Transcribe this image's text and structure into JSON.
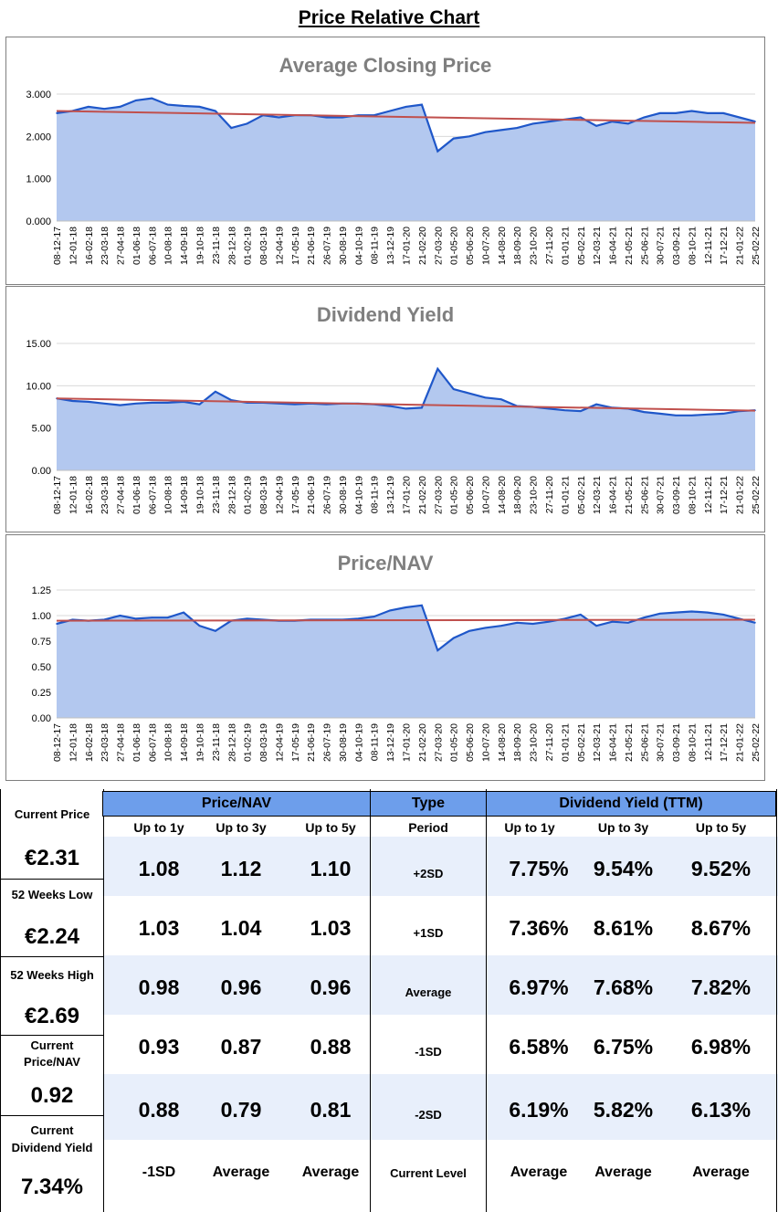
{
  "title": "Price Relative Chart",
  "colors": {
    "area": "#b3c8ef",
    "line": "#1f57c9",
    "trend": "#c0504d",
    "header_blue": "#6d9eeb",
    "band": "#e8effb"
  },
  "chart_data": [
    {
      "type": "area",
      "title": "Average Closing Price",
      "ylim": [
        0,
        3.0
      ],
      "yticks": [
        "0.000",
        "1.000",
        "2.000",
        "3.000"
      ],
      "ytick_values": [
        0,
        1,
        2,
        3
      ],
      "xticks": [
        "08-12-17",
        "12-01-18",
        "16-02-18",
        "23-03-18",
        "27-04-18",
        "01-06-18",
        "06-07-18",
        "10-08-18",
        "14-09-18",
        "19-10-18",
        "23-11-18",
        "28-12-18",
        "01-02-19",
        "08-03-19",
        "12-04-19",
        "17-05-19",
        "21-06-19",
        "26-07-19",
        "30-08-19",
        "04-10-19",
        "08-11-19",
        "13-12-19",
        "17-01-20",
        "21-02-20",
        "27-03-20",
        "01-05-20",
        "05-06-20",
        "10-07-20",
        "14-08-20",
        "18-09-20",
        "23-10-20",
        "27-11-20",
        "01-01-21",
        "05-02-21",
        "12-03-21",
        "16-04-21",
        "21-05-21",
        "25-06-21",
        "30-07-21",
        "03-09-21",
        "08-10-21",
        "12-11-21",
        "17-12-21",
        "21-01-22",
        "25-02-22"
      ],
      "values": [
        2.55,
        2.6,
        2.7,
        2.65,
        2.7,
        2.85,
        2.9,
        2.75,
        2.72,
        2.7,
        2.6,
        2.2,
        2.3,
        2.5,
        2.45,
        2.5,
        2.5,
        2.45,
        2.45,
        2.5,
        2.5,
        2.6,
        2.7,
        2.75,
        1.65,
        1.95,
        2.0,
        2.1,
        2.15,
        2.2,
        2.3,
        2.35,
        2.4,
        2.45,
        2.25,
        2.35,
        2.3,
        2.45,
        2.55,
        2.55,
        2.6,
        2.55,
        2.55,
        2.45,
        2.35
      ],
      "trend": [
        2.6,
        2.32
      ]
    },
    {
      "type": "area",
      "title": "Dividend Yield",
      "ylim": [
        0,
        15
      ],
      "yticks": [
        "0.00",
        "5.00",
        "10.00",
        "15.00"
      ],
      "ytick_values": [
        0,
        5,
        10,
        15
      ],
      "xticks": [
        "08-12-17",
        "12-01-18",
        "16-02-18",
        "23-03-18",
        "27-04-18",
        "01-06-18",
        "06-07-18",
        "10-08-18",
        "14-09-18",
        "19-10-18",
        "23-11-18",
        "28-12-18",
        "01-02-19",
        "08-03-19",
        "12-04-19",
        "17-05-19",
        "21-06-19",
        "26-07-19",
        "30-08-19",
        "04-10-19",
        "08-11-19",
        "13-12-19",
        "17-01-20",
        "21-02-20",
        "27-03-20",
        "01-05-20",
        "05-06-20",
        "10-07-20",
        "14-08-20",
        "18-09-20",
        "23-10-20",
        "27-11-20",
        "01-01-21",
        "05-02-21",
        "12-03-21",
        "16-04-21",
        "21-05-21",
        "25-06-21",
        "30-07-21",
        "03-09-21",
        "08-10-21",
        "12-11-21",
        "17-12-21",
        "21-01-22",
        "25-02-22"
      ],
      "values": [
        8.5,
        8.2,
        8.1,
        7.9,
        7.7,
        7.9,
        8.0,
        8.0,
        8.1,
        7.8,
        9.3,
        8.3,
        8.0,
        8.0,
        7.9,
        7.8,
        7.9,
        7.8,
        7.9,
        7.9,
        7.8,
        7.6,
        7.3,
        7.4,
        12.0,
        9.6,
        9.1,
        8.6,
        8.4,
        7.6,
        7.5,
        7.3,
        7.1,
        7.0,
        7.8,
        7.4,
        7.3,
        6.9,
        6.7,
        6.5,
        6.5,
        6.6,
        6.7,
        7.0,
        7.1
      ],
      "trend": [
        8.5,
        7.05
      ]
    },
    {
      "type": "area",
      "title": "Price/NAV",
      "ylim": [
        0,
        1.25
      ],
      "yticks": [
        "0.00",
        "0.25",
        "0.50",
        "0.75",
        "1.00",
        "1.25"
      ],
      "ytick_values": [
        0,
        0.25,
        0.5,
        0.75,
        1.0,
        1.25
      ],
      "xticks": [
        "08-12-17",
        "12-01-18",
        "16-02-18",
        "23-03-18",
        "27-04-18",
        "01-06-18",
        "06-07-18",
        "10-08-18",
        "14-09-18",
        "19-10-18",
        "23-11-18",
        "28-12-18",
        "01-02-19",
        "08-03-19",
        "12-04-19",
        "17-05-19",
        "21-06-19",
        "26-07-19",
        "30-08-19",
        "04-10-19",
        "08-11-19",
        "13-12-19",
        "17-01-20",
        "21-02-20",
        "27-03-20",
        "01-05-20",
        "05-06-20",
        "10-07-20",
        "14-08-20",
        "18-09-20",
        "23-10-20",
        "27-11-20",
        "01-01-21",
        "05-02-21",
        "12-03-21",
        "16-04-21",
        "21-05-21",
        "25-06-21",
        "30-07-21",
        "03-09-21",
        "08-10-21",
        "12-11-21",
        "17-12-21",
        "21-01-22",
        "25-02-22"
      ],
      "values": [
        0.92,
        0.96,
        0.95,
        0.96,
        1.0,
        0.97,
        0.98,
        0.98,
        1.03,
        0.9,
        0.85,
        0.95,
        0.97,
        0.96,
        0.95,
        0.95,
        0.96,
        0.96,
        0.96,
        0.97,
        0.99,
        1.05,
        1.08,
        1.1,
        0.66,
        0.78,
        0.85,
        0.88,
        0.9,
        0.93,
        0.92,
        0.94,
        0.97,
        1.01,
        0.9,
        0.94,
        0.93,
        0.98,
        1.02,
        1.03,
        1.04,
        1.03,
        1.01,
        0.97,
        0.93
      ],
      "trend": [
        0.95,
        0.96
      ]
    }
  ],
  "stats": {
    "current_price_label": "Current Price",
    "current_price": "€2.31",
    "low_label": "52 Weeks Low",
    "low": "€2.24",
    "high_label": "52 Weeks High",
    "high": "€2.69",
    "pnav_label_1": "Current",
    "pnav_label_2": "Price/NAV",
    "pnav": "0.92",
    "dy_label_1": "Current",
    "dy_label_2": "Dividend Yield",
    "dy": "7.34%"
  },
  "table": {
    "pnav_header": "Price/NAV",
    "type_header": "Type",
    "dy_header": "Dividend Yield (TTM)",
    "subheaders": [
      "Up to 1y",
      "Up to 3y",
      "Up to 5y",
      "Period",
      "Up to 1y",
      "Up to 3y",
      "Up to 5y"
    ],
    "rows": [
      [
        "1.08",
        "1.12",
        "1.10",
        "+2SD",
        "7.75%",
        "9.54%",
        "9.52%"
      ],
      [
        "1.03",
        "1.04",
        "1.03",
        "+1SD",
        "7.36%",
        "8.61%",
        "8.67%"
      ],
      [
        "0.98",
        "0.96",
        "0.96",
        "Average",
        "6.97%",
        "7.68%",
        "7.82%"
      ],
      [
        "0.93",
        "0.87",
        "0.88",
        "-1SD",
        "6.58%",
        "6.75%",
        "6.98%"
      ],
      [
        "0.88",
        "0.79",
        "0.81",
        "-2SD",
        "6.19%",
        "5.82%",
        "6.13%"
      ]
    ],
    "footer": [
      "-1SD",
      "Average",
      "Average",
      "Current Level",
      "Average",
      "Average",
      "Average"
    ]
  }
}
